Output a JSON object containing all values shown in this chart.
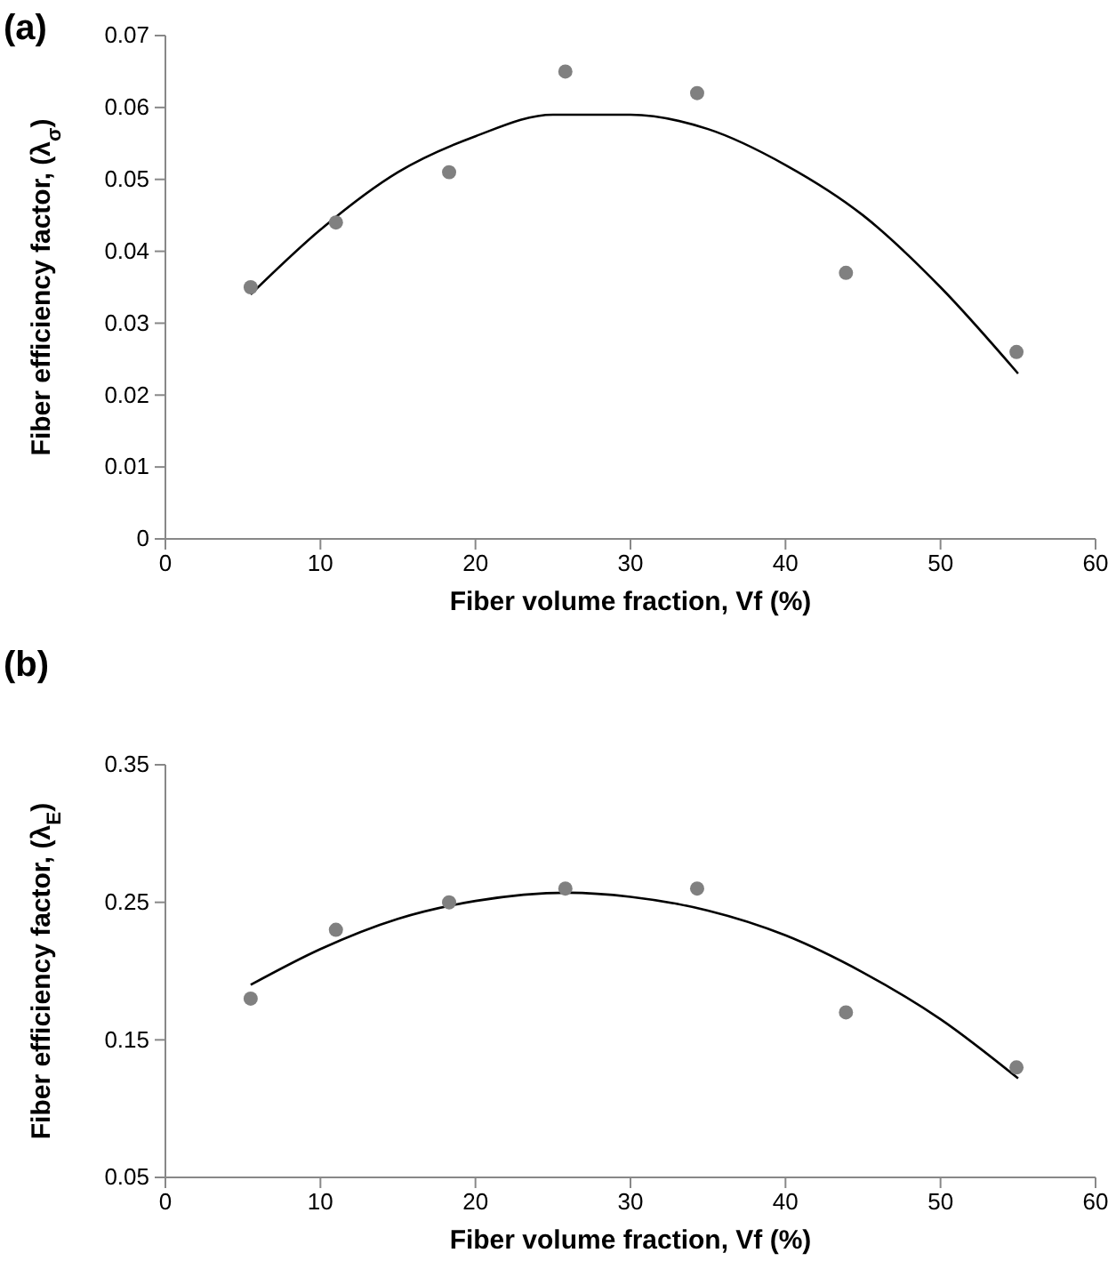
{
  "chart_data": [
    {
      "type": "scatter",
      "title": "(a)",
      "xlabel": "Fiber volume fraction, Vf (%)",
      "ylabel": "Fiber efficiency factor, (λ$_{σ}$)",
      "xlim": [
        0,
        60
      ],
      "xticks": [
        0,
        10,
        20,
        30,
        40,
        50,
        60
      ],
      "ylim": [
        0,
        0.07
      ],
      "yticks": [
        0,
        0.01,
        0.02,
        0.03,
        0.04,
        0.05,
        0.06,
        0.07
      ],
      "series": [
        {
          "marker": "circle",
          "color": "#808080",
          "x": [
            5.5,
            11,
            18.3,
            25.8,
            34.3,
            43.9,
            54.9
          ],
          "values": [
            0.035,
            0.044,
            0.051,
            0.065,
            0.062,
            0.037,
            0.026
          ]
        },
        {
          "type": "line",
          "marker": "none",
          "color": "#000000",
          "x": [
            5.5,
            10,
            15,
            20,
            25,
            28,
            30,
            35,
            40,
            45,
            50,
            55
          ],
          "values": [
            0.034,
            0.043,
            0.051,
            0.056,
            0.059,
            0.059,
            0.059,
            0.057,
            0.052,
            0.045,
            0.035,
            0.023
          ]
        }
      ]
    },
    {
      "type": "scatter",
      "title": "(b)",
      "xlabel": "Fiber volume fraction, Vf (%)",
      "ylabel": "Fiber efficiency factor, (λ$_{E}$)",
      "xlim": [
        0,
        60
      ],
      "xticks": [
        0,
        10,
        20,
        30,
        40,
        50,
        60
      ],
      "ylim": [
        0.05,
        0.35
      ],
      "yticks": [
        0.05,
        0.15,
        0.25,
        0.35
      ],
      "series": [
        {
          "marker": "circle",
          "color": "#808080",
          "x": [
            5.5,
            11,
            18.3,
            25.8,
            34.3,
            43.9,
            54.9
          ],
          "values": [
            0.18,
            0.23,
            0.25,
            0.26,
            0.26,
            0.17,
            0.13
          ]
        },
        {
          "type": "line",
          "marker": "none",
          "color": "#000000",
          "x": [
            5.5,
            10,
            15,
            20,
            26,
            30,
            35,
            40,
            45,
            50,
            55
          ],
          "values": [
            0.19,
            0.216,
            0.238,
            0.251,
            0.257,
            0.254,
            0.244,
            0.226,
            0.199,
            0.165,
            0.122
          ]
        }
      ]
    }
  ]
}
